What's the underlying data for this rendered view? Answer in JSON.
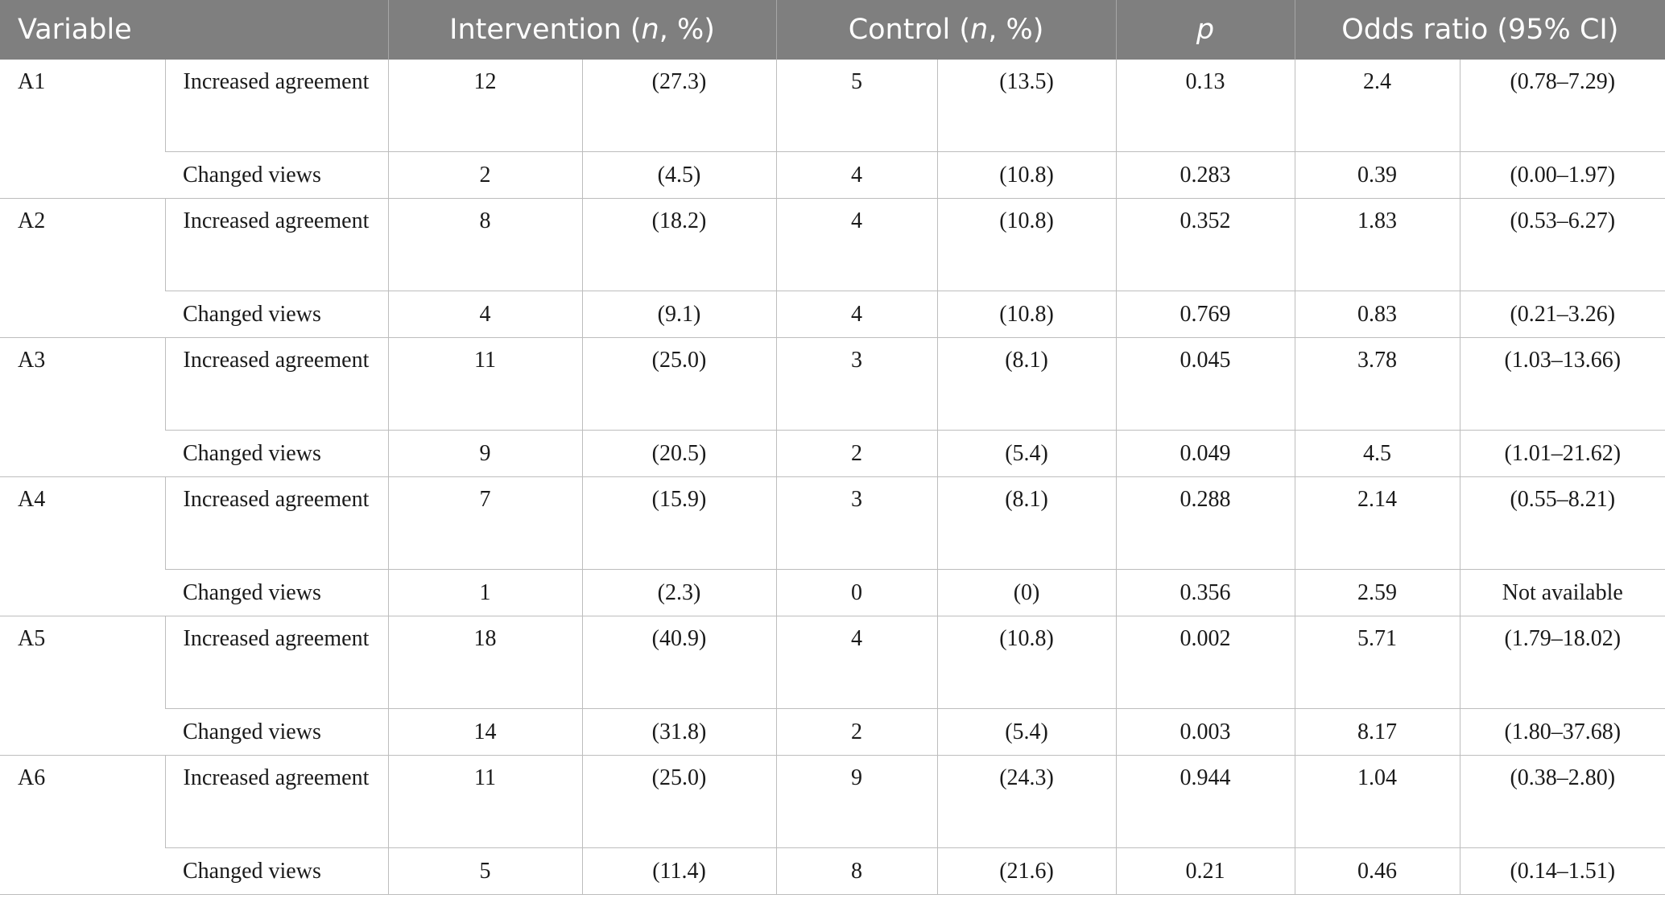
{
  "header": {
    "variable": "Variable",
    "intervention": "Intervention",
    "control": "Control",
    "n_pct_prefix": " (",
    "n_italic": "n",
    "n_pct_suffix": ", %)",
    "p": "p",
    "odds_ratio": "Odds ratio (95% CI)"
  },
  "groups": [
    {
      "variable": "A1",
      "rows": [
        {
          "category": "Increased agreement",
          "int_n": "12",
          "int_pct": "(27.3)",
          "ctl_n": "5",
          "ctl_pct": "(13.5)",
          "p": "0.13",
          "or": "2.4",
          "ci": "(0.78–7.29)"
        },
        {
          "category": "Changed views",
          "int_n": "2",
          "int_pct": "(4.5)",
          "ctl_n": "4",
          "ctl_pct": "(10.8)",
          "p": "0.283",
          "or": "0.39",
          "ci": "(0.00–1.97)"
        }
      ]
    },
    {
      "variable": "A2",
      "rows": [
        {
          "category": "Increased agreement",
          "int_n": "8",
          "int_pct": "(18.2)",
          "ctl_n": "4",
          "ctl_pct": "(10.8)",
          "p": "0.352",
          "or": "1.83",
          "ci": "(0.53–6.27)"
        },
        {
          "category": "Changed views",
          "int_n": "4",
          "int_pct": "(9.1)",
          "ctl_n": "4",
          "ctl_pct": "(10.8)",
          "p": "0.769",
          "or": "0.83",
          "ci": "(0.21–3.26)"
        }
      ]
    },
    {
      "variable": "A3",
      "rows": [
        {
          "category": "Increased agreement",
          "int_n": "11",
          "int_pct": "(25.0)",
          "ctl_n": "3",
          "ctl_pct": "(8.1)",
          "p": "0.045",
          "or": "3.78",
          "ci": "(1.03–13.66)"
        },
        {
          "category": "Changed views",
          "int_n": "9",
          "int_pct": "(20.5)",
          "ctl_n": "2",
          "ctl_pct": "(5.4)",
          "p": "0.049",
          "or": "4.5",
          "ci": "(1.01–21.62)"
        }
      ]
    },
    {
      "variable": "A4",
      "rows": [
        {
          "category": "Increased agreement",
          "int_n": "7",
          "int_pct": "(15.9)",
          "ctl_n": "3",
          "ctl_pct": "(8.1)",
          "p": "0.288",
          "or": "2.14",
          "ci": "(0.55–8.21)"
        },
        {
          "category": "Changed views",
          "int_n": "1",
          "int_pct": "(2.3)",
          "ctl_n": "0",
          "ctl_pct": "(0)",
          "p": "0.356",
          "or": "2.59",
          "ci": "Not available"
        }
      ]
    },
    {
      "variable": "A5",
      "rows": [
        {
          "category": "Increased agreement",
          "int_n": "18",
          "int_pct": "(40.9)",
          "ctl_n": "4",
          "ctl_pct": "(10.8)",
          "p": "0.002",
          "or": "5.71",
          "ci": "(1.79–18.02)"
        },
        {
          "category": "Changed views",
          "int_n": "14",
          "int_pct": "(31.8)",
          "ctl_n": "2",
          "ctl_pct": "(5.4)",
          "p": "0.003",
          "or": "8.17",
          "ci": "(1.80–37.68)"
        }
      ]
    },
    {
      "variable": "A6",
      "rows": [
        {
          "category": "Increased agreement",
          "int_n": "11",
          "int_pct": "(25.0)",
          "ctl_n": "9",
          "ctl_pct": "(24.3)",
          "p": "0.944",
          "or": "1.04",
          "ci": "(0.38–2.80)"
        },
        {
          "category": "Changed views",
          "int_n": "5",
          "int_pct": "(11.4)",
          "ctl_n": "8",
          "ctl_pct": "(21.6)",
          "p": "0.21",
          "or": "0.46",
          "ci": "(0.14–1.51)"
        }
      ]
    }
  ]
}
